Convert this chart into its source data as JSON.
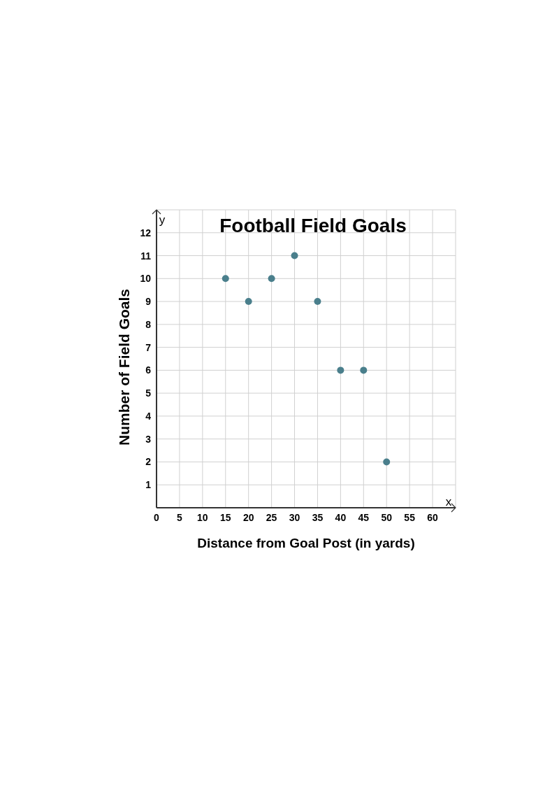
{
  "chart_data": {
    "type": "scatter",
    "title": "Football Field Goals",
    "xlabel": "Distance from Goal Post (in yards)",
    "ylabel": "Number of Field Goals",
    "x": [
      15,
      20,
      25,
      30,
      35,
      40,
      45,
      50
    ],
    "values": [
      10,
      9,
      10,
      11,
      9,
      6,
      6,
      2
    ],
    "color": "#4a7f8c",
    "marker": "circle",
    "grid": true,
    "xlim": [
      0,
      65
    ],
    "xticks": [
      0,
      5,
      10,
      15,
      20,
      25,
      30,
      35,
      40,
      45,
      50,
      55,
      60
    ],
    "ylim": [
      0,
      13
    ],
    "yticks": [
      1,
      2,
      3,
      4,
      5,
      6,
      7,
      8,
      9,
      10,
      11,
      12
    ],
    "annotations": [
      "x",
      "y"
    ]
  }
}
